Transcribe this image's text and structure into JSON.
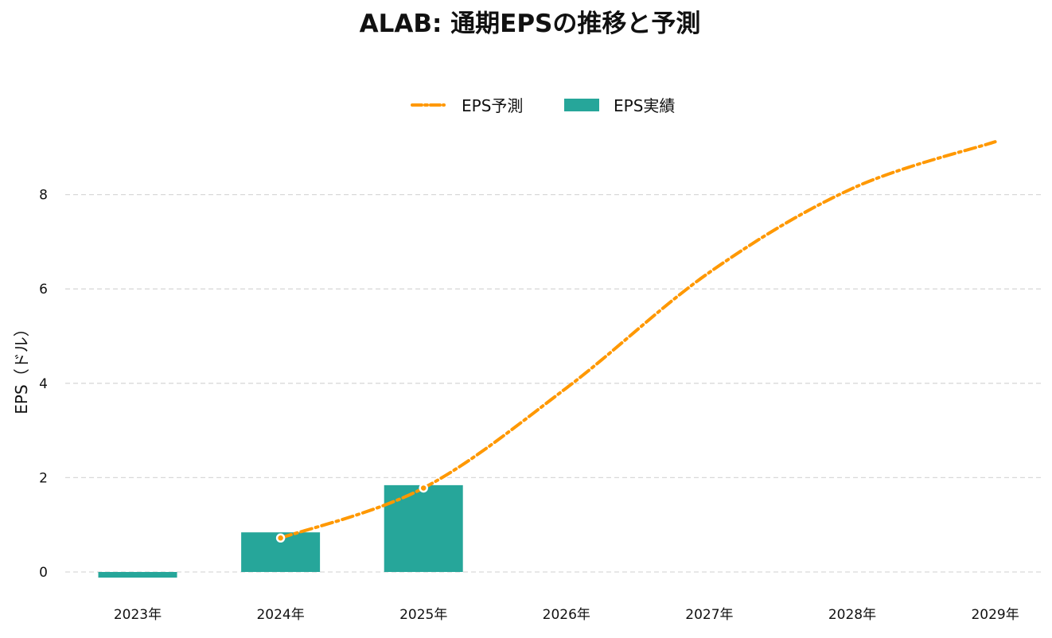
{
  "chart_data": {
    "type": "bar",
    "title": "ALAB: 通期EPSの推移と予測",
    "xlabel": "",
    "ylabel": "EPS（ドル）",
    "categories": [
      "2023年",
      "2024年",
      "2025年",
      "2026年",
      "2027年",
      "2028年",
      "2029年"
    ],
    "ylim": [
      -0.3,
      9.4
    ],
    "yticks": [
      0,
      2,
      4,
      6,
      8
    ],
    "grid": true,
    "legend_position": "top-center",
    "series": [
      {
        "name": "EPS実績",
        "type": "bar",
        "color": "#26a69a",
        "values": [
          -0.12,
          0.84,
          1.84,
          null,
          null,
          null,
          null
        ]
      },
      {
        "name": "EPS予測",
        "type": "line",
        "style": "dash-dot",
        "color": "#ff9800",
        "values": [
          null,
          0.72,
          1.78,
          3.9,
          6.35,
          8.13,
          9.12
        ],
        "open_markers_at": [
          "2024年",
          "2025年"
        ]
      }
    ],
    "legend": [
      {
        "label": "EPS予測",
        "kind": "line",
        "color": "#ff9800"
      },
      {
        "label": "EPS実績",
        "kind": "bar",
        "color": "#26a69a"
      }
    ]
  }
}
